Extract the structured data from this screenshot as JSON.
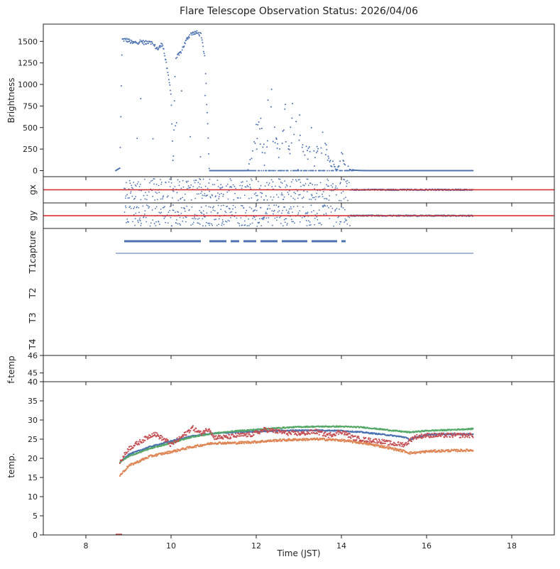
{
  "title": "Flare Telescope Observation Status: 2026/04/06",
  "xlabel": "Time (JST)",
  "x_ticks": [
    "8",
    "10",
    "12",
    "14",
    "16",
    "18"
  ],
  "colors": {
    "blue": "#4c72b0",
    "orange": "#dd8452",
    "green": "#55a868",
    "red": "#c44e52",
    "redline": "#d62728"
  },
  "chart_data": [
    {
      "panel": "brightness",
      "type": "scatter",
      "ylabel": "Brightness",
      "xlim": [
        7,
        19
      ],
      "ylim": [
        -70,
        1700
      ],
      "y_ticks": [
        "0",
        "250",
        "500",
        "750",
        "1000",
        "1250",
        "1500"
      ],
      "series": [
        {
          "x": [
            8.7,
            8.8,
            8.85,
            8.9,
            9.0,
            9.1,
            9.2,
            9.3,
            9.4,
            9.5,
            9.6,
            9.7,
            9.8,
            9.9,
            10.0,
            10.05,
            10.1,
            10.2,
            10.3,
            10.4,
            10.5,
            10.6,
            10.7,
            10.8,
            10.9,
            11.0,
            11.2,
            11.4,
            11.6,
            11.8,
            12.0,
            12.1,
            12.2,
            12.3,
            12.35,
            12.4,
            12.5,
            12.6,
            12.7,
            12.8,
            12.85,
            12.9,
            13.0,
            13.1,
            13.2,
            13.3,
            13.4,
            13.5,
            13.6,
            13.7,
            13.8,
            13.9,
            14.0,
            14.05,
            14.1,
            14.2,
            14.3,
            14.4,
            14.6,
            15.0,
            15.5,
            16.0,
            16.5,
            17.1
          ],
          "y": [
            0,
            30,
            1520,
            1520,
            1510,
            1480,
            1490,
            1500,
            1480,
            1510,
            1450,
            1410,
            1480,
            1200,
            900,
            20,
            1300,
            1350,
            1450,
            1550,
            1600,
            1600,
            1580,
            1300,
            0,
            0,
            0,
            0,
            0,
            0,
            450,
            550,
            200,
            1000,
            880,
            500,
            300,
            500,
            700,
            450,
            700,
            750,
            650,
            400,
            200,
            450,
            300,
            200,
            500,
            150,
            100,
            0,
            200,
            150,
            80,
            20,
            5,
            2,
            0,
            0,
            0,
            0,
            0,
            0
          ]
        }
      ]
    },
    {
      "panel": "gx",
      "type": "scatter",
      "ylabel": "gx",
      "xlim": [
        7,
        19
      ],
      "reference_line_color": "#d62728",
      "series": [
        {
          "x_start": 8.9,
          "x_end": 17.1,
          "note_level": 0
        }
      ]
    },
    {
      "panel": "gy",
      "type": "scatter",
      "ylabel": "gy",
      "xlim": [
        7,
        19
      ],
      "reference_line_color": "#d62728",
      "series": [
        {
          "x_start": 8.9,
          "x_end": 17.1,
          "note_level": 0
        }
      ]
    },
    {
      "panel": "status",
      "type": "scatter",
      "ylabel": "",
      "xlim": [
        7,
        19
      ],
      "categories": [
        "capture",
        "T1",
        "T2",
        "T3",
        "T4"
      ],
      "capture_segments": [
        [
          8.9,
          10.7
        ],
        [
          10.9,
          11.3
        ],
        [
          11.4,
          11.6
        ],
        [
          11.7,
          12.0
        ],
        [
          12.1,
          12.5
        ],
        [
          12.6,
          13.2
        ],
        [
          13.3,
          13.9
        ],
        [
          14.0,
          14.1
        ]
      ],
      "capture_base": [
        [
          8.7,
          17.1
        ]
      ]
    },
    {
      "panel": "f-temp",
      "type": "line",
      "ylabel": "f-temp",
      "xlim": [
        7,
        19
      ],
      "ylim": [
        44.5,
        46
      ],
      "y_ticks": [
        "45",
        "46"
      ],
      "series": []
    },
    {
      "panel": "temp",
      "type": "scatter",
      "ylabel": "temp.",
      "xlim": [
        7,
        19
      ],
      "ylim": [
        0,
        40
      ],
      "y_ticks": [
        "0",
        "5",
        "10",
        "15",
        "20",
        "25",
        "30",
        "35",
        "40"
      ],
      "series": [
        {
          "color": "blue",
          "x": [
            8.8,
            9.0,
            9.5,
            10.0,
            10.5,
            11.0,
            11.5,
            12.0,
            12.5,
            13.0,
            13.5,
            14.0,
            14.5,
            15.0,
            15.5,
            15.6,
            15.8,
            16.0,
            16.5,
            17.1
          ],
          "y": [
            19.0,
            21.0,
            23.0,
            24.5,
            25.8,
            26.5,
            26.8,
            27.0,
            27.2,
            27.3,
            27.3,
            27.2,
            26.8,
            26.2,
            25.5,
            24.8,
            25.6,
            26.2,
            26.3,
            26.3
          ]
        },
        {
          "color": "orange",
          "x": [
            8.8,
            9.0,
            9.5,
            10.0,
            10.5,
            11.0,
            11.5,
            12.0,
            12.5,
            13.0,
            13.5,
            14.0,
            14.5,
            15.0,
            15.5,
            15.6,
            15.8,
            16.0,
            16.5,
            17.1
          ],
          "y": [
            15.5,
            18.0,
            20.5,
            21.7,
            23.0,
            24.0,
            24.0,
            24.3,
            24.7,
            24.9,
            25.0,
            24.7,
            24.0,
            23.0,
            21.8,
            21.4,
            21.5,
            21.8,
            22.0,
            22.1
          ]
        },
        {
          "color": "green",
          "x": [
            8.8,
            9.0,
            9.5,
            10.0,
            10.5,
            11.0,
            11.5,
            12.0,
            12.5,
            13.0,
            13.5,
            14.0,
            14.5,
            15.0,
            15.5,
            15.6,
            15.8,
            16.0,
            16.5,
            17.1
          ],
          "y": [
            19.0,
            20.5,
            22.5,
            24.0,
            25.6,
            26.5,
            27.1,
            27.5,
            27.9,
            28.2,
            28.3,
            28.3,
            28.1,
            27.5,
            26.9,
            26.8,
            27.0,
            27.2,
            27.4,
            27.7
          ]
        },
        {
          "color": "red",
          "x": [
            8.8,
            9.0,
            9.3,
            9.6,
            9.9,
            10.0,
            10.3,
            10.5,
            10.7,
            10.9,
            11.0,
            11.3,
            11.6,
            11.9,
            12.2,
            12.5,
            12.8,
            13.1,
            13.4,
            13.7,
            14.0,
            14.3,
            14.6,
            14.9,
            15.2,
            15.5,
            15.7,
            16.0,
            16.5,
            17.1
          ],
          "y": [
            19.0,
            22.5,
            24.5,
            26.5,
            24.5,
            23.5,
            26.0,
            28.0,
            26.5,
            27.8,
            25.5,
            25.5,
            26.0,
            26.2,
            27.5,
            27.0,
            26.5,
            26.5,
            27.0,
            26.0,
            27.0,
            25.3,
            24.8,
            24.5,
            23.8,
            23.6,
            25.5,
            26.0,
            26.0,
            26.0
          ]
        }
      ]
    }
  ]
}
